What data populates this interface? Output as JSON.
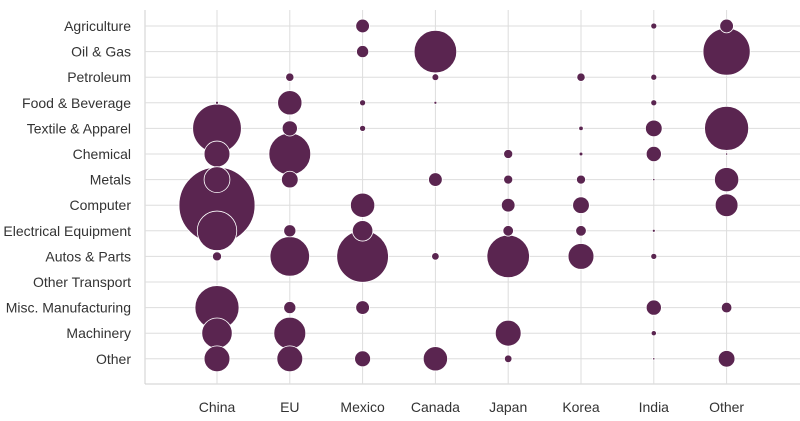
{
  "chart_data": {
    "type": "bubble-matrix",
    "title": "",
    "xlabel": "",
    "ylabel": "",
    "x_categories": [
      "China",
      "EU",
      "Mexico",
      "Canada",
      "Japan",
      "Korea",
      "India",
      "Other"
    ],
    "y_categories": [
      "Agriculture",
      "Oil & Gas",
      "Petroleum",
      "Food & Beverage",
      "Textile & Apparel",
      "Chemical",
      "Metals",
      "Computer",
      "Electrical Equipment",
      "Autos & Parts",
      "Other Transport",
      "Misc. Manufacturing",
      "Machinery",
      "Other"
    ],
    "size_unit": "relative (bubble radius, max = 1.0)",
    "grid": true,
    "bubble_color": "#5a2550",
    "bubble_stroke": "#ffffff",
    "values": [
      [
        0,
        0,
        0.18,
        0,
        0,
        0,
        0.08,
        0.18
      ],
      [
        0,
        0,
        0.16,
        0.56,
        0,
        0,
        0,
        0.62
      ],
      [
        0,
        0.11,
        0,
        0.09,
        0,
        0.11,
        0.08,
        0
      ],
      [
        0.04,
        0.32,
        0.08,
        0.04,
        0,
        0,
        0.08,
        0
      ],
      [
        0.64,
        0.2,
        0.08,
        0,
        0,
        0.06,
        0.22,
        0.58
      ],
      [
        0.34,
        0.55,
        0,
        0,
        0.12,
        0.05,
        0.2,
        0.02
      ],
      [
        0.34,
        0.22,
        0,
        0.18,
        0.12,
        0.12,
        0.03,
        0.32
      ],
      [
        1.0,
        0,
        0.32,
        0,
        0.18,
        0.22,
        0,
        0.3
      ],
      [
        0.52,
        0.16,
        0.27,
        0,
        0.14,
        0.14,
        0.04,
        0
      ],
      [
        0.12,
        0.52,
        0.68,
        0.1,
        0.56,
        0.34,
        0.08,
        0
      ],
      [
        0,
        0,
        0,
        0,
        0,
        0,
        0,
        0
      ],
      [
        0.58,
        0.16,
        0.18,
        0,
        0,
        0,
        0.2,
        0.14
      ],
      [
        0.4,
        0.42,
        0,
        0,
        0.34,
        0,
        0.07,
        0
      ],
      [
        0.34,
        0.34,
        0.21,
        0.32,
        0.1,
        0,
        0.02,
        0.22
      ]
    ]
  }
}
